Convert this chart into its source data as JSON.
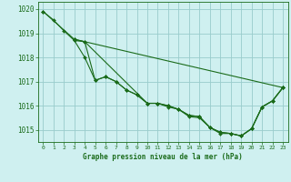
{
  "background_color": "#cff0f0",
  "grid_color": "#99cccc",
  "line_color": "#1a6b1a",
  "marker_color": "#1a6b1a",
  "title": "Graphe pression niveau de la mer (hPa)",
  "xlim": [
    -0.5,
    23.5
  ],
  "ylim": [
    1014.5,
    1020.3
  ],
  "yticks": [
    1015,
    1016,
    1017,
    1018,
    1019,
    1020
  ],
  "xtick_labels": [
    "0",
    "1",
    "2",
    "3",
    "4",
    "5",
    "6",
    "7",
    "8",
    "9",
    "10",
    "11",
    "12",
    "13",
    "14",
    "15",
    "16",
    "17",
    "18",
    "19",
    "20",
    "21",
    "22",
    "23"
  ],
  "xtick_pos": [
    0,
    1,
    2,
    3,
    4,
    5,
    6,
    7,
    8,
    9,
    10,
    11,
    12,
    13,
    14,
    15,
    16,
    17,
    18,
    19,
    20,
    21,
    22,
    23
  ],
  "series": [
    {
      "x": [
        0,
        1,
        2,
        3,
        4,
        5,
        6,
        7,
        8,
        9,
        10,
        11,
        12,
        13,
        14,
        15,
        16,
        17,
        18,
        19,
        20,
        21,
        22,
        23
      ],
      "y": [
        1019.9,
        1019.55,
        1019.1,
        1018.7,
        1018.0,
        1017.05,
        1017.2,
        1017.0,
        1016.65,
        1016.45,
        1016.1,
        1016.1,
        1016.0,
        1015.85,
        1015.6,
        1015.55,
        1015.1,
        1014.9,
        1014.85,
        1014.75,
        1015.05,
        1015.95,
        1016.2,
        1016.75
      ]
    },
    {
      "x": [
        0,
        3,
        23
      ],
      "y": [
        1019.9,
        1018.75,
        1016.75
      ]
    },
    {
      "x": [
        3,
        4,
        5,
        6,
        7,
        8,
        9,
        10,
        11,
        12,
        13,
        14,
        15,
        16,
        17,
        18,
        19,
        20,
        21,
        22,
        23
      ],
      "y": [
        1018.75,
        1018.65,
        1017.05,
        1017.2,
        1017.0,
        1016.65,
        1016.45,
        1016.1,
        1016.1,
        1016.0,
        1015.85,
        1015.6,
        1015.55,
        1015.1,
        1014.9,
        1014.85,
        1014.75,
        1015.05,
        1015.95,
        1016.2,
        1016.75
      ]
    },
    {
      "x": [
        3,
        4,
        10,
        11,
        12,
        13,
        14,
        15,
        16,
        17,
        18,
        19,
        20,
        21,
        22,
        23
      ],
      "y": [
        1018.7,
        1018.65,
        1016.1,
        1016.1,
        1015.95,
        1015.85,
        1015.55,
        1015.5,
        1015.1,
        1014.85,
        1014.85,
        1014.75,
        1015.05,
        1015.95,
        1016.2,
        1016.75
      ]
    }
  ]
}
